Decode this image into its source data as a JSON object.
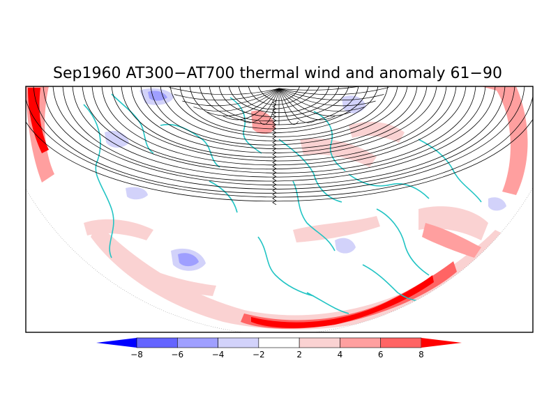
{
  "title": "Sep1960 AT300−AT700 thermal wind and anomaly 61−90",
  "colors": {
    "frame": "#000000",
    "coast": "#22c4c4",
    "streamline": "#000000",
    "neg_deep": "#0000ff",
    "pos_deep": "#ff0000"
  },
  "colorbar": {
    "tick_labels": [
      "−8",
      "−6",
      "−4",
      "−2",
      "2",
      "4",
      "6",
      "8"
    ],
    "bins": [
      {
        "lo": -10,
        "hi": -8,
        "color": "#0000ff"
      },
      {
        "lo": -8,
        "hi": -6,
        "color": "#6464ff"
      },
      {
        "lo": -6,
        "hi": -4,
        "color": "#9f9fff"
      },
      {
        "lo": -4,
        "hi": -2,
        "color": "#d2d2fa"
      },
      {
        "lo": -2,
        "hi": 2,
        "color": "#ffffff"
      },
      {
        "lo": 2,
        "hi": 4,
        "color": "#fad2d2"
      },
      {
        "lo": 4,
        "hi": 6,
        "color": "#ff9f9f"
      },
      {
        "lo": 6,
        "hi": 8,
        "color": "#ff6464"
      },
      {
        "lo": 8,
        "hi": 10,
        "color": "#ff0000"
      }
    ]
  },
  "map": {
    "projection": "polar-stereographic",
    "hemisphere": "north",
    "field": "thermal wind anomaly",
    "overlay": "thermal wind streamlines"
  }
}
